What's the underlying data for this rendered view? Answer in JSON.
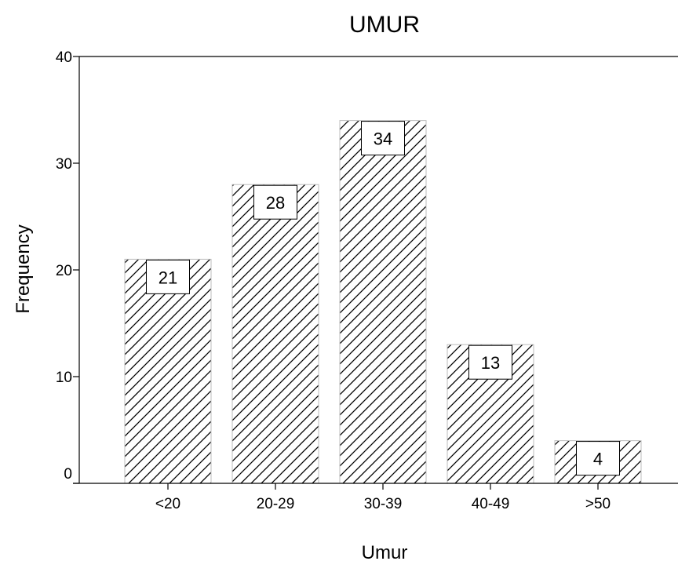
{
  "chart_data": {
    "type": "bar",
    "title": "UMUR",
    "xlabel": "Umur",
    "ylabel": "Frequency",
    "categories": [
      "<20",
      "20-29",
      "30-39",
      "40-49",
      ">50"
    ],
    "values": [
      21,
      28,
      34,
      13,
      4
    ],
    "data_labels": [
      "21",
      "28",
      "34",
      "13",
      "4"
    ],
    "ylim": [
      0,
      40
    ],
    "yticks": [
      0,
      10,
      20,
      30,
      40
    ],
    "ytick_labels": [
      "0",
      "10",
      "20",
      "30",
      "40"
    ],
    "grid": false,
    "legend": "none",
    "bar_pattern": "diagonal-hatch",
    "colors": {
      "bar_fill": "#ffffff",
      "hatch": "#000000",
      "axis": "#000000",
      "label_box": "#ffffff"
    }
  }
}
